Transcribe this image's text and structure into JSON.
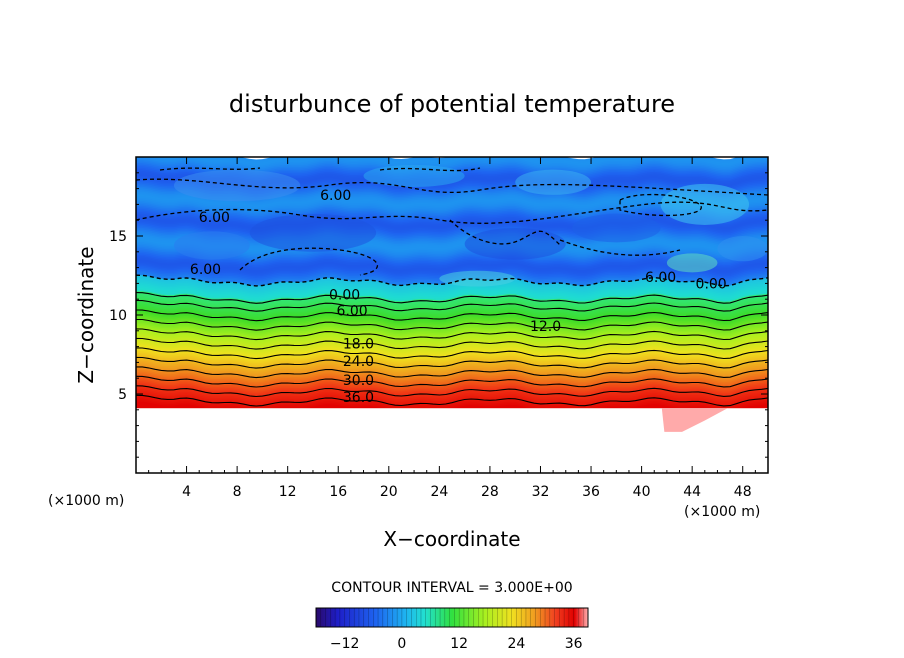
{
  "chart_data": {
    "type": "heatmap",
    "title": "disturbunce of potential temperature",
    "xlabel": "X−coordinate",
    "ylabel": "Z−coordinate",
    "x_units_left": "(×1000 m)",
    "x_units_right": "(×1000 m)",
    "xlim": [
      0,
      50
    ],
    "ylim": [
      0,
      20
    ],
    "x_ticks": [
      4,
      8,
      12,
      16,
      20,
      24,
      28,
      32,
      36,
      40,
      44,
      48
    ],
    "y_ticks": [
      5,
      10,
      15
    ],
    "contour_interval_text": "CONTOUR INTERVAL = 3.000E+00",
    "contour_interval": 3.0,
    "colorbar": {
      "range": [
        -18,
        39
      ],
      "tick_values": [
        -12,
        0,
        12,
        24,
        36
      ],
      "tick_labels": [
        "−12",
        "0",
        "12",
        "24",
        "36"
      ]
    },
    "fill_base_z": 4.1,
    "contour_labels": [
      {
        "text": "6.00",
        "x": 15.8,
        "z": 17.6
      },
      {
        "text": "6.00",
        "x": 6.2,
        "z": 16.2
      },
      {
        "text": "6.00",
        "x": 5.5,
        "z": 12.9
      },
      {
        "text": "6.00",
        "x": 41.5,
        "z": 12.4
      },
      {
        "text": "0.00",
        "x": 45.5,
        "z": 12.0
      },
      {
        "text": "0.00",
        "x": 16.5,
        "z": 11.3
      },
      {
        "text": "6.00",
        "x": 17.1,
        "z": 10.3
      },
      {
        "text": "12.0",
        "x": 32.4,
        "z": 9.3
      },
      {
        "text": "18.0",
        "x": 17.6,
        "z": 8.2
      },
      {
        "text": "24.0",
        "x": 17.6,
        "z": 7.1
      },
      {
        "text": "30.0",
        "x": 17.6,
        "z": 5.9
      },
      {
        "text": "36.0",
        "x": 17.6,
        "z": 4.8
      }
    ]
  }
}
